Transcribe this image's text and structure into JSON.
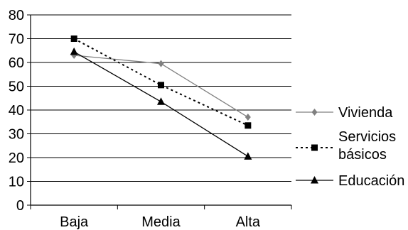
{
  "chart_data": {
    "type": "line",
    "categories": [
      "Baja",
      "Media",
      "Alta"
    ],
    "ylim": [
      0,
      80
    ],
    "yticks": [
      0,
      10,
      20,
      30,
      40,
      50,
      60,
      70,
      80
    ],
    "grid": true,
    "legend_position": "right",
    "series": [
      {
        "name": "Vivienda",
        "values": [
          63,
          59.5,
          37
        ],
        "color": "#808080",
        "dash": "solid",
        "marker": "diamond"
      },
      {
        "name_lines": [
          "Servicios",
          "básicos"
        ],
        "values": [
          70,
          50.5,
          33.5
        ],
        "color": "#000000",
        "dash": "dotted",
        "marker": "square"
      },
      {
        "name": "Educación",
        "values": [
          64.5,
          43.5,
          20.5
        ],
        "color": "#000000",
        "dash": "solid",
        "marker": "triangle"
      }
    ]
  }
}
